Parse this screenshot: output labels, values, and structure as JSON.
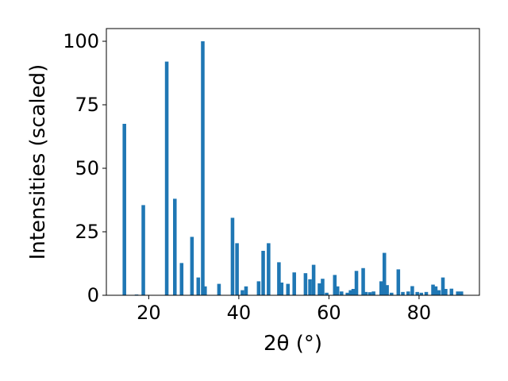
{
  "chart_data": {
    "type": "bar",
    "xlabel": "2θ (°)",
    "ylabel": "Intensities (scaled)",
    "xlim": [
      10.6,
      93.4
    ],
    "ylim": [
      0,
      105
    ],
    "xticks": [
      20,
      40,
      60,
      80
    ],
    "yticks": [
      0,
      25,
      50,
      75,
      100
    ],
    "bar_color": "#1f77b4",
    "bar_width": 0.8,
    "grid": false,
    "x": [
      14.6,
      17.3,
      18.8,
      24.0,
      25.8,
      27.3,
      29.6,
      31.0,
      32.0,
      32.5,
      35.6,
      38.6,
      39.6,
      40.8,
      41.6,
      44.4,
      45.4,
      46.6,
      48.9,
      49.5,
      50.9,
      52.3,
      54.8,
      55.8,
      56.6,
      57.9,
      58.6,
      59.5,
      61.3,
      61.9,
      62.8,
      64.1,
      64.8,
      65.4,
      66.1,
      67.6,
      68.2,
      69.1,
      69.9,
      71.6,
      72.3,
      72.9,
      73.9,
      75.4,
      76.4,
      77.6,
      78.5,
      79.6,
      80.5,
      81.6,
      83.1,
      83.7,
      84.4,
      85.3,
      85.9,
      87.2,
      88.6,
      89.4
    ],
    "values": [
      67.5,
      0.3,
      35.5,
      92.0,
      38.0,
      12.7,
      23.0,
      7.0,
      100.0,
      3.5,
      4.5,
      30.5,
      20.5,
      2.0,
      3.5,
      5.5,
      17.5,
      20.5,
      13.0,
      5.0,
      4.5,
      9.0,
      8.7,
      6.3,
      12.0,
      4.7,
      6.5,
      1.0,
      8.0,
      3.5,
      1.5,
      1.0,
      2.0,
      2.5,
      9.6,
      10.7,
      1.3,
      1.2,
      1.5,
      5.5,
      16.7,
      4.0,
      1.0,
      10.2,
      1.3,
      1.5,
      3.6,
      1.3,
      1.0,
      1.3,
      4.2,
      3.5,
      2.0,
      7.0,
      2.5,
      2.6,
      1.5,
      1.5
    ]
  }
}
